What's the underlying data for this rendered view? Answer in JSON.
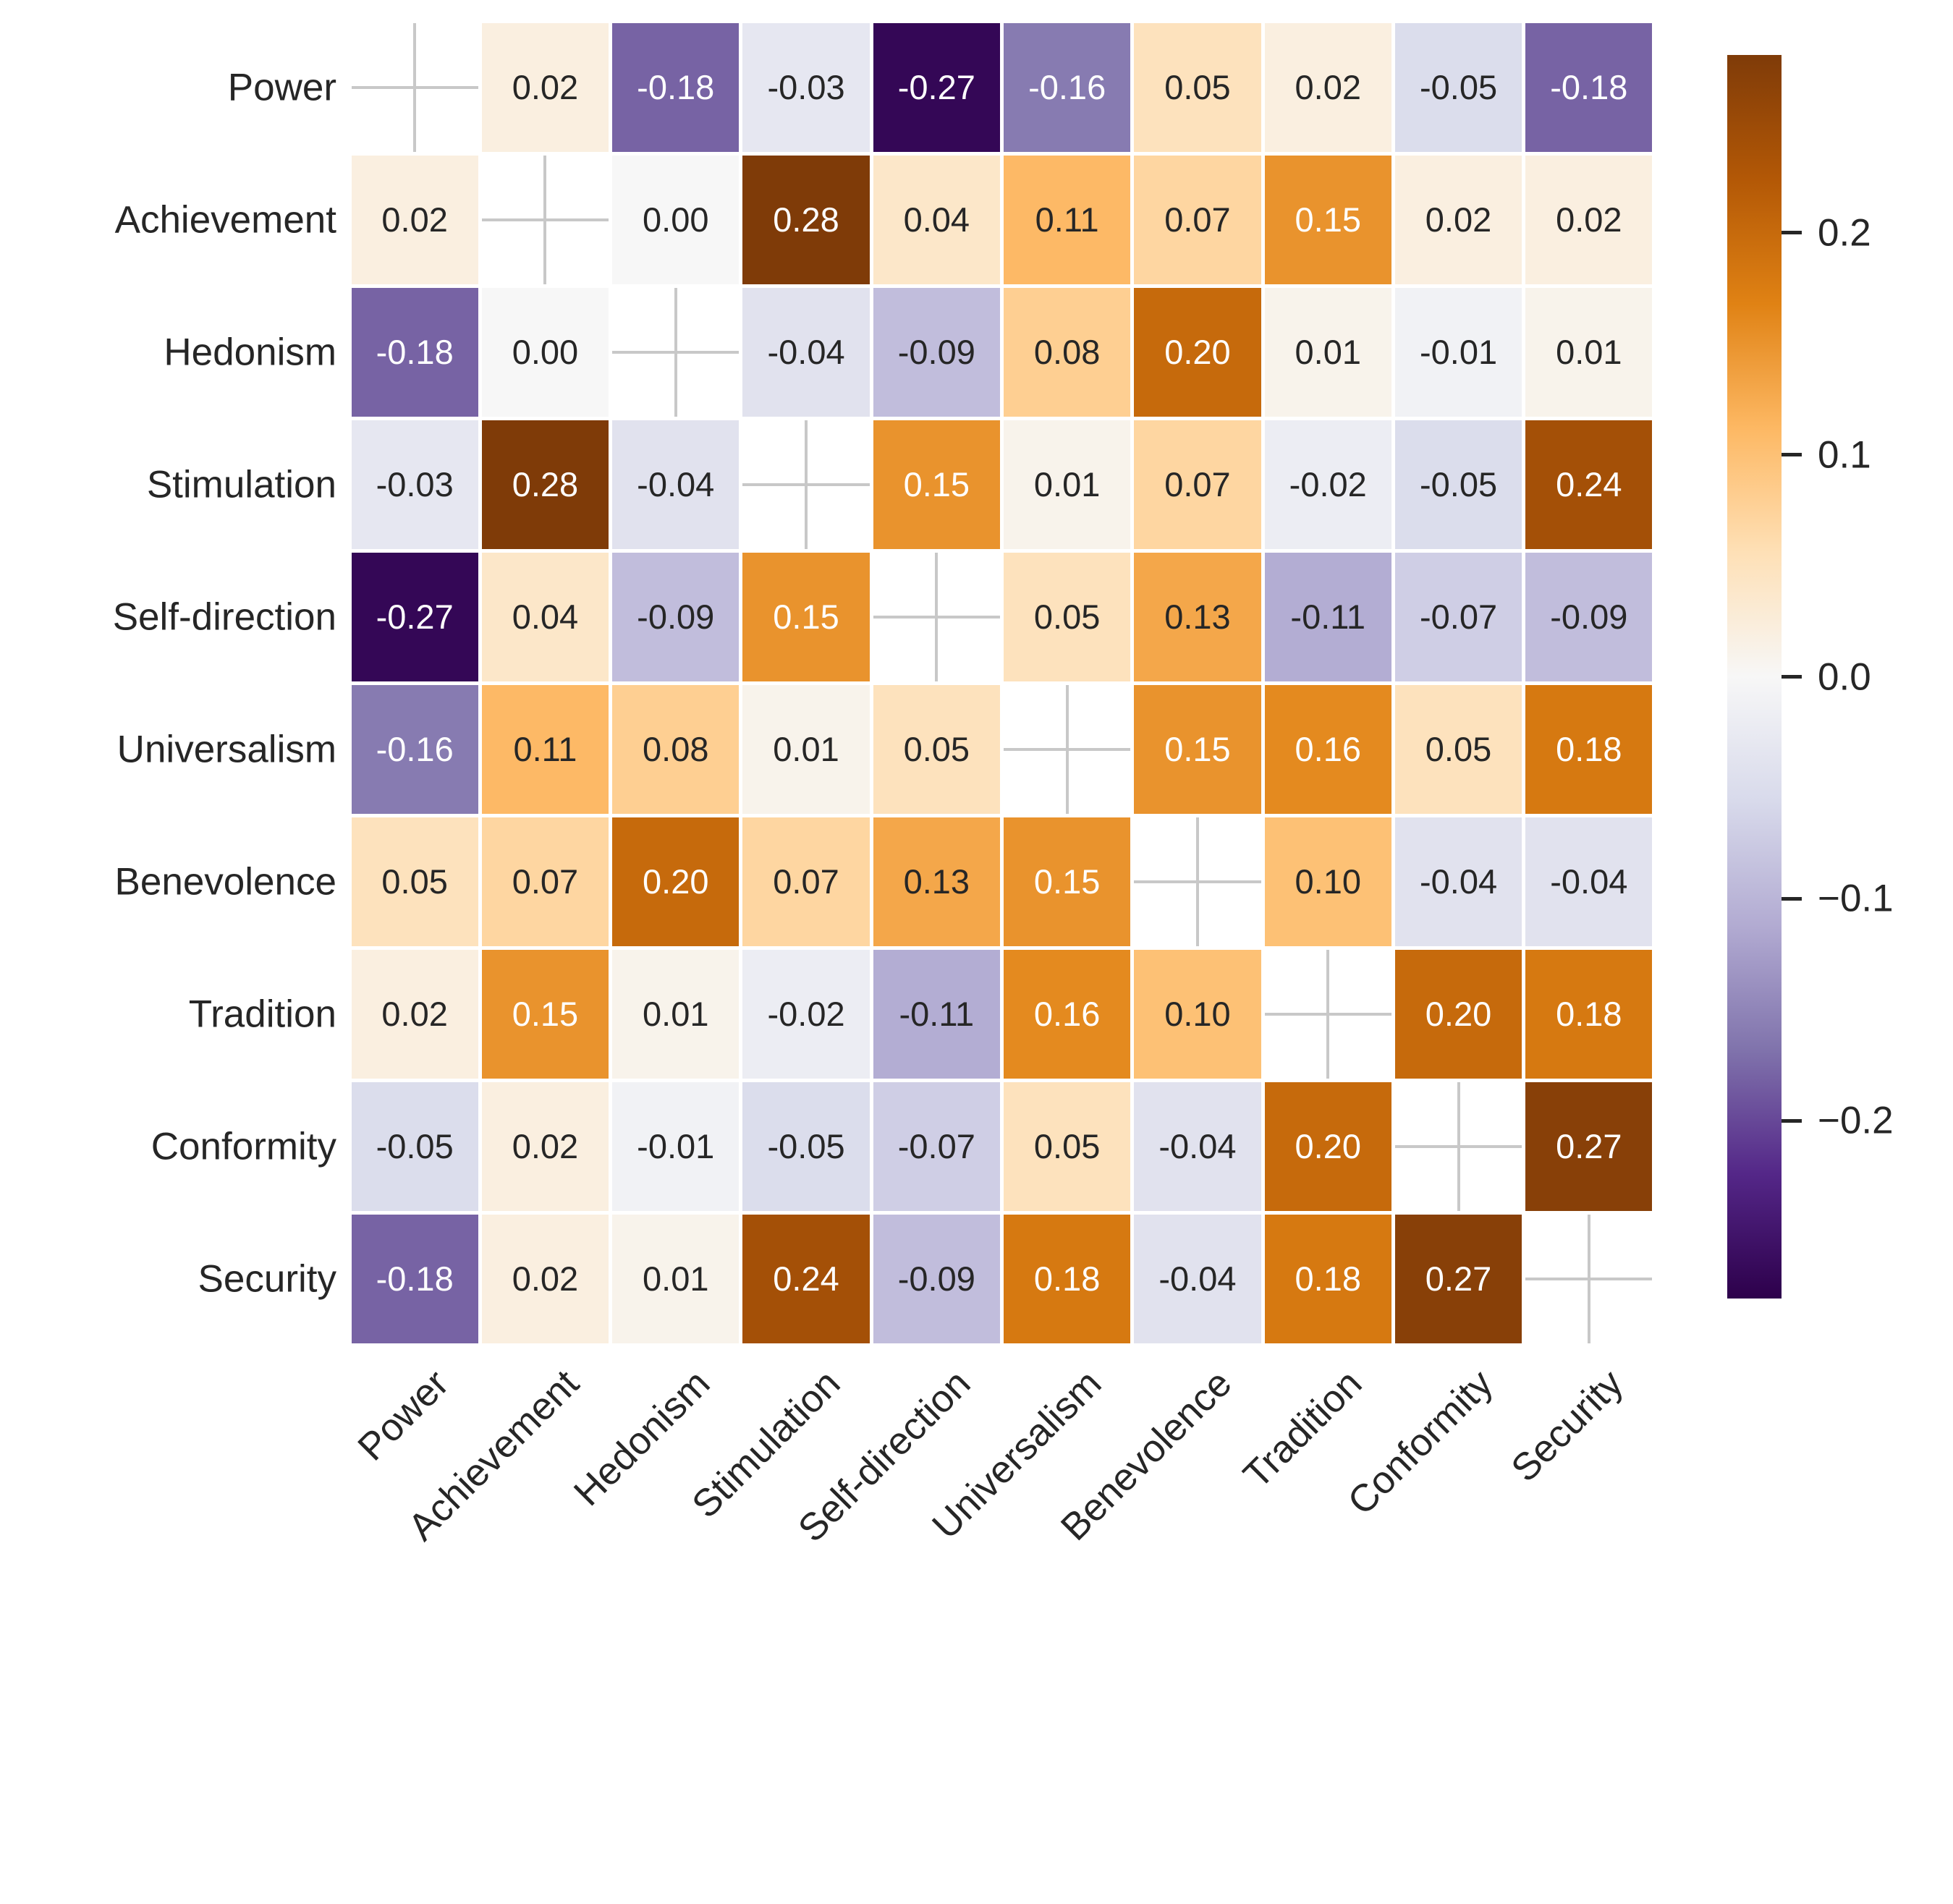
{
  "chart_data": {
    "type": "heatmap",
    "title": "",
    "xlabel": "",
    "ylabel": "",
    "categories": [
      "Power",
      "Achievement",
      "Hedonism",
      "Stimulation",
      "Self-direction",
      "Universalism",
      "Benevolence",
      "Tradition",
      "Conformity",
      "Security"
    ],
    "matrix": [
      [
        null,
        0.02,
        -0.18,
        -0.03,
        -0.27,
        -0.16,
        0.05,
        0.02,
        -0.05,
        -0.18
      ],
      [
        0.02,
        null,
        0.0,
        0.28,
        0.04,
        0.11,
        0.07,
        0.15,
        0.02,
        0.02
      ],
      [
        -0.18,
        0.0,
        null,
        -0.04,
        -0.09,
        0.08,
        0.2,
        0.01,
        -0.01,
        0.01
      ],
      [
        -0.03,
        0.28,
        -0.04,
        null,
        0.15,
        0.01,
        0.07,
        -0.02,
        -0.05,
        0.24
      ],
      [
        -0.27,
        0.04,
        -0.09,
        0.15,
        null,
        0.05,
        0.13,
        -0.11,
        -0.07,
        -0.09
      ],
      [
        -0.16,
        0.11,
        0.08,
        0.01,
        0.05,
        null,
        0.15,
        0.16,
        0.05,
        0.18
      ],
      [
        0.05,
        0.07,
        0.2,
        0.07,
        0.13,
        0.15,
        null,
        0.1,
        -0.04,
        -0.04
      ],
      [
        0.02,
        0.15,
        0.01,
        -0.02,
        -0.11,
        0.16,
        0.1,
        null,
        0.2,
        0.18
      ],
      [
        -0.05,
        0.02,
        -0.01,
        -0.05,
        -0.07,
        0.05,
        -0.04,
        0.2,
        null,
        0.27
      ],
      [
        -0.18,
        0.02,
        0.01,
        0.24,
        -0.09,
        0.18,
        -0.04,
        0.18,
        0.27,
        null
      ]
    ],
    "annotation_decimals": 2,
    "diagonal_marker": "plus",
    "legend_position": "right",
    "grid": false,
    "colorbar": {
      "vmin": -0.28,
      "vmax": 0.28,
      "tick_labels": [
        "0.2",
        "0.1",
        "0.0",
        "−0.1",
        "−0.2"
      ],
      "tick_values": [
        0.2,
        0.1,
        0.0,
        -0.1,
        -0.2
      ],
      "colormap_name": "PuOr_r",
      "colormap_stops": [
        "#2d004b",
        "#542788",
        "#8073ac",
        "#b2abd2",
        "#d8daeb",
        "#f7f7f7",
        "#fee0b6",
        "#fdb863",
        "#e08214",
        "#b35806",
        "#7f3b08"
      ]
    },
    "colors": {
      "annotation_dark": "#262626",
      "annotation_light": "#ffffff",
      "diagonal_marker_color": "#c8c8c8",
      "background": "#ffffff",
      "cell_gap": "#ffffff"
    }
  }
}
